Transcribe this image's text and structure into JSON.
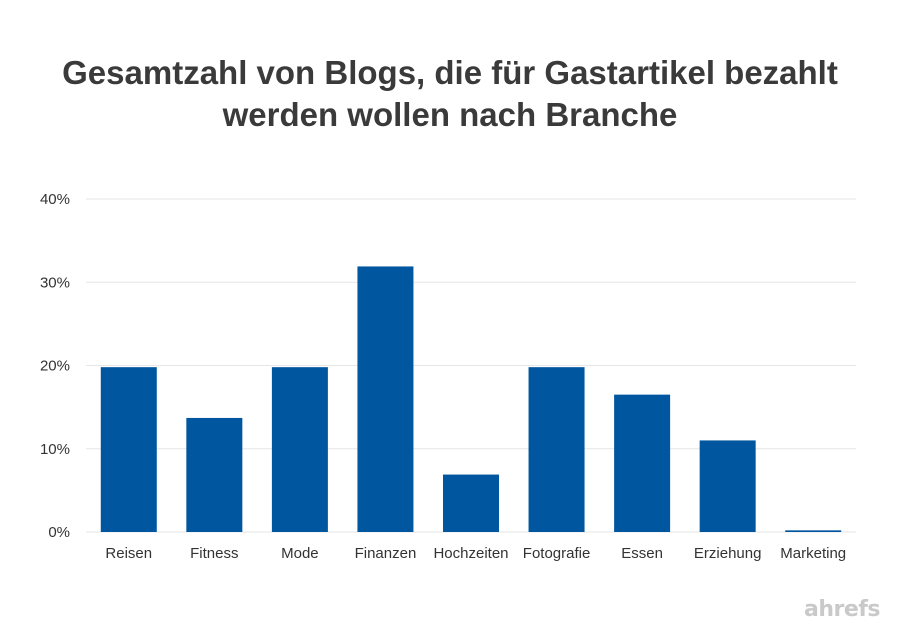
{
  "chart_data": {
    "type": "bar",
    "title_lines": [
      "Gesamtzahl von Blogs, die für Gastartikel bezahlt",
      "werden wollen nach Branche"
    ],
    "categories": [
      "Reisen",
      "Fitness",
      "Mode",
      "Finanzen",
      "Hochzeiten",
      "Fotografie",
      "Essen",
      "Erziehung",
      "Marketing"
    ],
    "values": [
      19.8,
      13.7,
      19.8,
      31.9,
      6.9,
      19.8,
      16.5,
      11.0,
      0.2
    ],
    "ylim": [
      0,
      40
    ],
    "yticks": [
      0,
      10,
      20,
      30,
      40
    ],
    "ytick_labels": [
      "0%",
      "10%",
      "20%",
      "30%",
      "40%"
    ],
    "grid": true,
    "bar_color": "#0057a0",
    "grid_color": "#e6e6e6"
  },
  "branding": {
    "logo_text": "ahrefs"
  }
}
